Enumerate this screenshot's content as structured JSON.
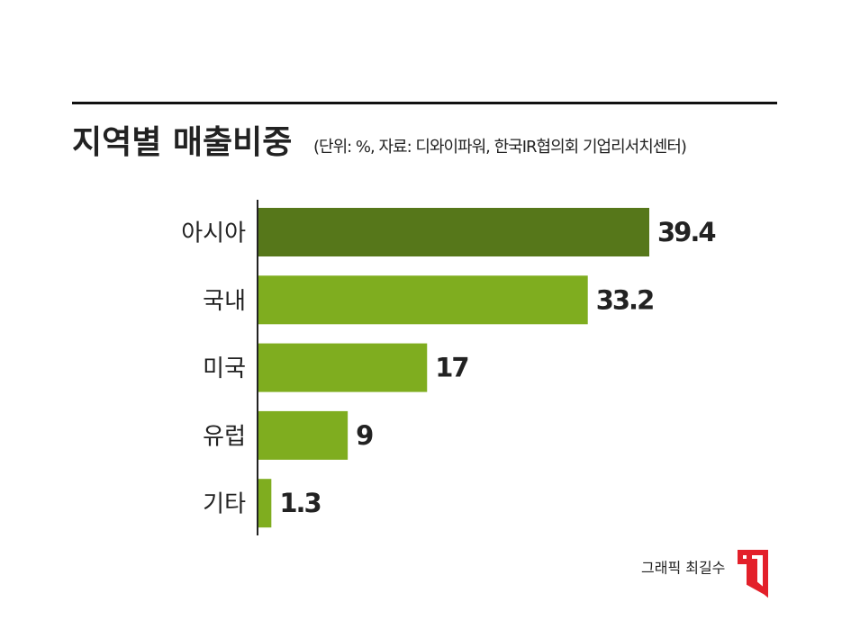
{
  "chart_data": {
    "type": "hbar",
    "title": "지역별 매출비중",
    "subtitle": "(단위: %, 자료: 디와이파워, 한국IR협의회 기업리서치센터)",
    "credit": "그래픽 최길수",
    "categories": [
      "아시아",
      "국내",
      "미국",
      "유럽",
      "기타"
    ],
    "values": [
      39.4,
      33.2,
      17,
      9,
      1.3
    ],
    "colors": [
      "#56771a",
      "#7fad1f",
      "#7fad1f",
      "#7fad1f",
      "#7fad1f"
    ]
  }
}
